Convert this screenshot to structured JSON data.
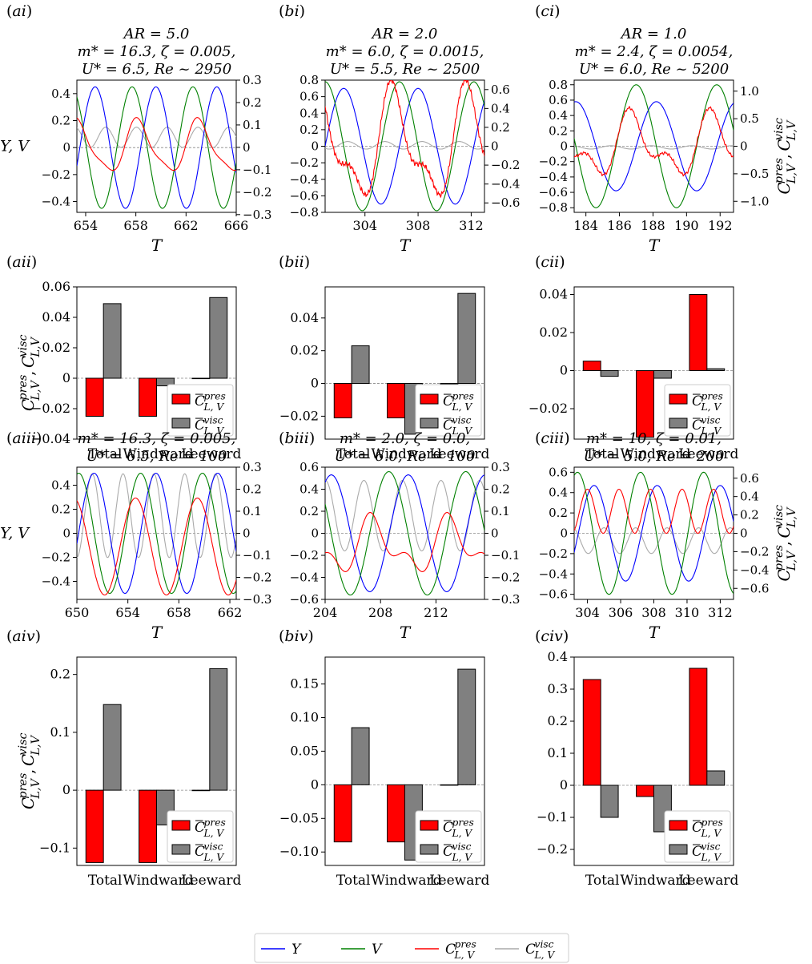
{
  "figure": {
    "legend": [
      {
        "label": "Y",
        "color": "#0000ff"
      },
      {
        "label": "V",
        "color": "#008000"
      },
      {
        "label": "C_{L, V}^{pres}",
        "color": "#ff0000"
      },
      {
        "label": "C_{L, V}^{visc}",
        "color": "#aaaaaa"
      }
    ],
    "colors": {
      "Y": "#0000ff",
      "V": "#008000",
      "pres": "#ff0000",
      "visc": "#aaaaaa",
      "bar_pres": "#ff0000",
      "bar_visc": "#808080"
    }
  },
  "chart_data": [
    {
      "id": "ai",
      "type": "line",
      "tag": "ai",
      "title": [
        "AR = 5.0",
        "m* = 16.3, ζ = 0.005,",
        "U* = 6.5, Re ~ 2950"
      ],
      "xlabel": "T",
      "ylabel": "Y, V",
      "y2label": "",
      "xlim": [
        653.3,
        666
      ],
      "xticks": [
        654,
        658,
        662,
        666
      ],
      "ylim": [
        -0.48,
        0.5
      ],
      "yticks": [
        0.4,
        0.2,
        0,
        -0.2,
        -0.4
      ],
      "yticklabels": [
        "0.4",
        "0.2",
        "0",
        "−0.2",
        "−0.4"
      ],
      "y2lim": [
        -0.29,
        0.3
      ],
      "y2ticks": [
        0.3,
        0.2,
        0.1,
        0,
        -0.1,
        -0.2,
        -0.3
      ],
      "y2ticklabels": [
        "0.3",
        "0.2",
        "0.1",
        "0",
        "−0.1",
        "−0.2",
        "−0.3"
      ],
      "series": {
        "Y": {
          "amp": 0.45,
          "period": 4.85,
          "phase_peak": 659.6
        },
        "V": {
          "amp": 0.45,
          "period": 4.85,
          "phase_peak": 657.7
        },
        "pres": {
          "amp": 0.11,
          "period": 4.85,
          "phase_peak": 658.2,
          "harm": 0.25
        },
        "visc": {
          "amp": 0.045,
          "period": 2.45,
          "phase_peak": 655.6,
          "offset": 0.045
        }
      }
    },
    {
      "id": "bi",
      "type": "line",
      "tag": "bi",
      "title": [
        "AR = 2.0",
        "m* = 6.0, ζ = 0.0015,",
        "U* = 5.5, Re ~ 2500"
      ],
      "xlabel": "T",
      "ylabel": "",
      "y2label": "",
      "xlim": [
        301,
        313
      ],
      "xticks": [
        304,
        308,
        312
      ],
      "ylim": [
        -0.8,
        0.8
      ],
      "yticks": [
        0.8,
        0.6,
        0.4,
        0.2,
        0,
        -0.2,
        -0.4,
        -0.6,
        -0.8
      ],
      "yticklabels": [
        "0.8",
        "0.6",
        "0.4",
        "0.2",
        "0",
        "−0.2",
        "−0.4",
        "−0.6",
        "−0.8"
      ],
      "y2lim": [
        -0.7,
        0.7
      ],
      "y2ticks": [
        0.6,
        0.4,
        0.2,
        0,
        -0.2,
        -0.4,
        -0.6
      ],
      "y2ticklabels": [
        "0.6",
        "0.4",
        "0.2",
        "0",
        "−0.2",
        "−0.4",
        "−0.6"
      ],
      "series": {
        "Y": {
          "amp": 0.7,
          "period": 5.6,
          "phase_peak": 308.0
        },
        "V": {
          "amp": 0.78,
          "period": 5.6,
          "phase_peak": 306.6
        },
        "pres": {
          "amp": 0.5,
          "period": 5.6,
          "phase_peak": 306.2,
          "harm": 0.45,
          "noise": 0.03
        },
        "visc": {
          "amp": 0.04,
          "period": 2.8,
          "phase_peak": 305.5,
          "offset": 0.01
        }
      }
    },
    {
      "id": "ci",
      "type": "line",
      "tag": "ci",
      "title": [
        "AR = 1.0",
        "m* = 2.4, ζ = 0.0054,",
        "U* = 6.0, Re ~ 5200"
      ],
      "xlabel": "T",
      "ylabel": "",
      "y2label": "C_{L,V}^{pres}, C_{L,V}^{visc}",
      "xlim": [
        183.3,
        192.8
      ],
      "xticks": [
        184,
        186,
        188,
        190,
        192
      ],
      "ylim": [
        -0.86,
        0.86
      ],
      "yticks": [
        0.8,
        0.6,
        0.4,
        0.2,
        0,
        -0.2,
        -0.4,
        -0.6,
        -0.8
      ],
      "yticklabels": [
        "0.8",
        "0.6",
        "0.4",
        "0.2",
        "0",
        "−0.2",
        "−0.4",
        "−0.6",
        "−0.8"
      ],
      "y2lim": [
        -1.2,
        1.2
      ],
      "y2ticks": [
        1.0,
        0.5,
        0,
        -0.5,
        -1.0
      ],
      "y2ticklabels": [
        "1.0",
        "0.5",
        "0",
        "−0.5",
        "−1.0"
      ],
      "series": {
        "Y": {
          "amp": 0.58,
          "period": 4.8,
          "phase_peak": 188.2
        },
        "V": {
          "amp": 0.8,
          "period": 4.8,
          "phase_peak": 187.0
        },
        "pres": {
          "amp": 0.45,
          "period": 4.8,
          "phase_peak": 186.8,
          "harm": 0.6,
          "noise": 0.03
        },
        "visc": {
          "amp": 0.03,
          "period": 2.4,
          "phase_peak": 185.5,
          "offset": -0.02
        }
      }
    },
    {
      "id": "aii",
      "type": "bar",
      "tag": "aii",
      "ylabel": "C_{L,V}^{pres}, C_{L,V}^{visc}",
      "categories": [
        "Total",
        "Windward",
        "Leeward"
      ],
      "series": [
        {
          "name": "C̄_{L, V}^{pres}",
          "values": [
            -0.025,
            -0.025,
            0.0
          ]
        },
        {
          "name": "C̄_{L, V}^{visc}",
          "values": [
            0.049,
            -0.005,
            0.053
          ]
        }
      ],
      "ylim": [
        -0.04,
        0.06
      ],
      "yticks": [
        0.06,
        0.04,
        0.02,
        0,
        -0.02,
        -0.04
      ],
      "yticklabels": [
        "0.06",
        "0.04",
        "0.02",
        "0",
        "−0.02",
        "−0.04"
      ],
      "legend": "lower-right"
    },
    {
      "id": "bii",
      "type": "bar",
      "tag": "bii",
      "ylabel": "",
      "categories": [
        "Total",
        "Windward",
        "Leeward"
      ],
      "series": [
        {
          "name": "C̄_{L, V}^{pres}",
          "values": [
            -0.021,
            -0.021,
            0.0
          ]
        },
        {
          "name": "C̄_{L, V}^{visc}",
          "values": [
            0.023,
            -0.031,
            0.055
          ]
        }
      ],
      "ylim": [
        -0.034,
        0.059
      ],
      "yticks": [
        0.04,
        0.02,
        0,
        -0.02
      ],
      "yticklabels": [
        "0.04",
        "0.02",
        "0",
        "−0.02"
      ],
      "legend": "lower-right"
    },
    {
      "id": "cii",
      "type": "bar",
      "tag": "cii",
      "ylabel": "",
      "categories": [
        "Total",
        "Windward",
        "Leeward"
      ],
      "series": [
        {
          "name": "C̄_{L, V}^{pres}",
          "values": [
            0.005,
            -0.035,
            0.04
          ]
        },
        {
          "name": "C̄_{L, V}^{visc}",
          "values": [
            -0.003,
            -0.004,
            0.001
          ]
        }
      ],
      "ylim": [
        -0.036,
        0.044
      ],
      "yticks": [
        0.04,
        0.02,
        0,
        -0.02
      ],
      "yticklabels": [
        "0.04",
        "0.02",
        "0",
        "−0.02"
      ],
      "legend": "lower-right"
    },
    {
      "id": "aiii",
      "type": "line",
      "tag": "aiii",
      "title": [
        "m* = 16.3, ζ = 0.005,",
        "U* = 6.5, Re = 100"
      ],
      "xlabel": "T",
      "ylabel": "Y, V",
      "y2label": "",
      "xlim": [
        650,
        662.5
      ],
      "xticks": [
        650,
        654,
        658,
        662
      ],
      "ylim": [
        -0.55,
        0.55
      ],
      "yticks": [
        0.4,
        0.2,
        0,
        -0.2,
        -0.4
      ],
      "yticklabels": [
        "0.4",
        "0.2",
        "0",
        "−0.2",
        "−0.4"
      ],
      "y2lim": [
        -0.3,
        0.3
      ],
      "y2ticks": [
        0.3,
        0.2,
        0.1,
        0,
        -0.1,
        -0.2,
        -0.3
      ],
      "y2ticklabels": [
        "0.3",
        "0.2",
        "0.1",
        "0",
        "−0.1",
        "−0.2",
        "−0.3"
      ],
      "series": {
        "Y": {
          "amp": 0.5,
          "period": 4.85,
          "phase_peak": 656.2
        },
        "V": {
          "amp": 0.5,
          "period": 4.85,
          "phase_peak": 655.0
        },
        "pres": {
          "amp": 0.22,
          "period": 4.85,
          "phase_peak": 654.6,
          "offset": -0.06
        },
        "visc": {
          "amp": 0.19,
          "period": 2.42,
          "phase_peak": 651.2,
          "offset": 0.08
        }
      }
    },
    {
      "id": "biii",
      "type": "line",
      "tag": "biii",
      "title": [
        "m* = 2.0, ζ = 0.0,",
        "U* = 6.0, Re = 100"
      ],
      "xlabel": "T",
      "ylabel": "",
      "y2label": "",
      "xlim": [
        204,
        215.5
      ],
      "xticks": [
        204,
        208,
        212
      ],
      "ylim": [
        -0.6,
        0.6
      ],
      "yticks": [
        0.6,
        0.4,
        0.2,
        0,
        -0.2,
        -0.4,
        -0.6
      ],
      "yticklabels": [
        "0.6",
        "0.4",
        "0.2",
        "0",
        "−0.2",
        "−0.4",
        "−0.6"
      ],
      "y2lim": [
        -0.3,
        0.3
      ],
      "y2ticks": [
        0.3,
        0.2,
        0.1,
        0,
        -0.1,
        -0.2,
        -0.3
      ],
      "y2ticklabels": [
        "0.3",
        "0.2",
        "0.1",
        "0",
        "−0.1",
        "−0.2",
        "−0.3"
      ],
      "series": {
        "Y": {
          "amp": 0.53,
          "period": 5.55,
          "phase_peak": 210.0
        },
        "V": {
          "amp": 0.56,
          "period": 5.55,
          "phase_peak": 208.6
        },
        "pres": {
          "amp": 0.1,
          "period": 5.55,
          "phase_peak": 207.5,
          "offset": -0.06,
          "harm": 0.6
        },
        "visc": {
          "amp": 0.16,
          "period": 2.78,
          "phase_peak": 206.8,
          "offset": 0.08
        }
      }
    },
    {
      "id": "ciii",
      "type": "line",
      "tag": "ciii",
      "title": [
        "m* = 10, ζ = 0.01,",
        "U* = 5.0, Re = 200"
      ],
      "xlabel": "T",
      "ylabel": "",
      "y2label": "C_{L,V}^{pres}, C_{L,V}^{visc}",
      "xlim": [
        303.2,
        312.8
      ],
      "xticks": [
        304,
        306,
        308,
        310,
        312
      ],
      "ylim": [
        -0.65,
        0.65
      ],
      "yticks": [
        0.6,
        0.4,
        0.2,
        0,
        -0.2,
        -0.4,
        -0.6
      ],
      "yticklabels": [
        "0.6",
        "0.4",
        "0.2",
        "0",
        "−0.2",
        "−0.4",
        "−0.6"
      ],
      "y2lim": [
        -0.72,
        0.72
      ],
      "y2ticks": [
        0.6,
        0.4,
        0.2,
        0,
        -0.2,
        -0.4,
        -0.6
      ],
      "y2ticklabels": [
        "0.6",
        "0.4",
        "0.2",
        "0",
        "−0.2",
        "−0.4",
        "−0.6"
      ],
      "series": {
        "Y": {
          "amp": 0.47,
          "period": 3.8,
          "phase_peak": 308.2
        },
        "V": {
          "amp": 0.6,
          "period": 3.8,
          "phase_peak": 307.2
        },
        "pres": {
          "amp": 0.24,
          "period": 1.9,
          "phase_peak": 305.9,
          "offset": 0.24
        },
        "visc": {
          "amp": 0.14,
          "period": 1.9,
          "phase_peak": 306.9,
          "offset": -0.08
        }
      }
    },
    {
      "id": "aiv",
      "type": "bar",
      "tag": "aiv",
      "ylabel": "C_{L,V}^{pres}, C_{L,V}^{visc}",
      "categories": [
        "Total",
        "Windward",
        "Leeward"
      ],
      "series": [
        {
          "name": "C̄_{L, V}^{pres}",
          "values": [
            -0.125,
            -0.125,
            0.0
          ]
        },
        {
          "name": "C̄_{L, V}^{visc}",
          "values": [
            0.148,
            -0.06,
            0.21
          ]
        }
      ],
      "ylim": [
        -0.13,
        0.23
      ],
      "yticks": [
        0.2,
        0.1,
        0,
        -0.1
      ],
      "yticklabels": [
        "0.2",
        "0.1",
        "0",
        "−0.1"
      ],
      "legend": "lower-right"
    },
    {
      "id": "biv",
      "type": "bar",
      "tag": "biv",
      "ylabel": "",
      "categories": [
        "Total",
        "Windward",
        "Leeward"
      ],
      "series": [
        {
          "name": "C̄_{L, V}^{pres}",
          "values": [
            -0.085,
            -0.085,
            0.0
          ]
        },
        {
          "name": "C̄_{L, V}^{visc}",
          "values": [
            0.085,
            -0.112,
            0.172
          ]
        }
      ],
      "ylim": [
        -0.12,
        0.19
      ],
      "yticks": [
        0.15,
        0.1,
        0.05,
        0,
        -0.05,
        -0.1
      ],
      "yticklabels": [
        "0.15",
        "0.10",
        "0.05",
        "0",
        "−0.05",
        "−0.10"
      ],
      "legend": "lower-right"
    },
    {
      "id": "civ",
      "type": "bar",
      "tag": "civ",
      "ylabel": "",
      "categories": [
        "Total",
        "Windward",
        "Leeward"
      ],
      "series": [
        {
          "name": "C̄_{L, V}^{pres}",
          "values": [
            0.33,
            -0.035,
            0.365
          ]
        },
        {
          "name": "C̄_{L, V}^{visc}",
          "values": [
            -0.1,
            -0.145,
            0.045
          ]
        }
      ],
      "ylim": [
        -0.25,
        0.4
      ],
      "yticks": [
        0.4,
        0.3,
        0.2,
        0.1,
        0,
        -0.1,
        -0.2
      ],
      "yticklabels": [
        "0.4",
        "0.3",
        "0.2",
        "0.1",
        "0",
        "−0.1",
        "−0.2"
      ],
      "legend": "lower-right"
    }
  ]
}
